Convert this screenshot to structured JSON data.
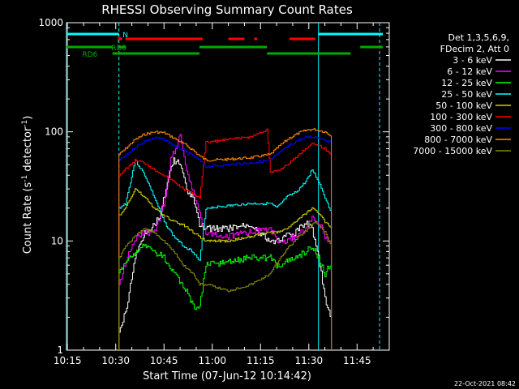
{
  "chart_data": {
    "type": "line",
    "title": "RHESSI Observing Summary Count Rates",
    "xlabel": "Start Time (07-Jun-12 10:14:42)",
    "ylabel": "Count Rate (s",
    "ylabel_sup": "-1",
    "ylabel_mid": " detector",
    "ylabel_sup2": "-1",
    "ylabel_end": ")",
    "y_scale": "log",
    "ylim": [
      1,
      1000
    ],
    "xlim": [
      "10:14:42",
      "11:55:00"
    ],
    "x_ticks": [
      "10:15",
      "10:30",
      "10:45",
      "11:00",
      "11:15",
      "11:30",
      "11:45"
    ],
    "y_ticks": [
      "1",
      "10",
      "100",
      "1000"
    ],
    "legend": {
      "placement": "right",
      "header": [
        "Det 1,3,5,6,9,",
        "FDecim 2, Att 0"
      ]
    },
    "series": [
      {
        "name": "3 - 6 keV",
        "color": "#ffffff",
        "x": [
          "10:31",
          "10:33",
          "10:36",
          "10:39",
          "10:42",
          "10:44",
          "10:46",
          "10:48",
          "10:50",
          "10:52",
          "10:54",
          "10:56",
          "10:58",
          "11:05",
          "11:12",
          "11:18",
          "11:20",
          "11:23",
          "11:26",
          "11:29",
          "11:31",
          "11:33",
          "11:35",
          "11:37"
        ],
        "y": [
          1.5,
          2.2,
          7,
          12,
          14,
          18,
          35,
          55,
          50,
          30,
          25,
          14,
          13,
          13,
          14,
          10,
          10,
          11,
          12,
          15,
          13,
          7,
          3,
          2
        ]
      },
      {
        "name": "6 - 12 keV",
        "color": "#ff00ff",
        "x": [
          "10:31",
          "10:34",
          "10:38",
          "10:42",
          "10:45",
          "10:47",
          "10:49",
          "10:50",
          "10:52",
          "10:54",
          "10:56",
          "10:58",
          "11:05",
          "11:12",
          "11:18",
          "11:20",
          "11:23",
          "11:26",
          "11:29",
          "11:31",
          "11:33",
          "11:35",
          "11:37"
        ],
        "y": [
          4,
          8,
          12,
          12,
          22,
          55,
          75,
          95,
          45,
          28,
          18,
          12,
          11,
          12,
          13,
          10,
          10,
          11,
          13,
          16,
          15,
          11,
          9
        ]
      },
      {
        "name": "12 - 25 keV",
        "color": "#00ff00",
        "x": [
          "10:31",
          "10:34",
          "10:38",
          "10:42",
          "10:45",
          "10:48",
          "10:52",
          "10:54",
          "10:56",
          "10:58",
          "11:05",
          "11:12",
          "11:18",
          "11:20",
          "11:23",
          "11:26",
          "11:29",
          "11:31",
          "11:33",
          "11:35",
          "11:37"
        ],
        "y": [
          5,
          7,
          9,
          8,
          7,
          5,
          3.5,
          2.5,
          2.5,
          6,
          6.5,
          7,
          7,
          6,
          6.5,
          7,
          8,
          9,
          7,
          5,
          6.5
        ]
      },
      {
        "name": "25 - 50 keV",
        "color": "#00ffff",
        "x": [
          "10:31",
          "10:33",
          "10:36",
          "10:39",
          "10:42",
          "10:45",
          "10:48",
          "10:51",
          "10:54",
          "10:56",
          "10:58",
          "11:05",
          "11:12",
          "11:18",
          "11:20",
          "11:23",
          "11:26",
          "11:29",
          "11:31",
          "11:33",
          "11:35",
          "11:37"
        ],
        "y": [
          20,
          22,
          55,
          40,
          25,
          15,
          11,
          9,
          8,
          6.5,
          20,
          21,
          22,
          22,
          20,
          25,
          28,
          35,
          45,
          35,
          25,
          18
        ]
      },
      {
        "name": "50 - 100 keV",
        "color": "#cccc00",
        "x": [
          "10:31",
          "10:33",
          "10:36",
          "10:39",
          "10:42",
          "10:45",
          "10:48",
          "10:51",
          "10:54",
          "10:56",
          "10:58",
          "11:05",
          "11:12",
          "11:18",
          "11:20",
          "11:23",
          "11:26",
          "11:29",
          "11:31",
          "11:33",
          "11:35",
          "11:37"
        ],
        "y": [
          17,
          20,
          30,
          25,
          20,
          17,
          15,
          14,
          12,
          11,
          10,
          10,
          11,
          12,
          12,
          13,
          15,
          18,
          20,
          18,
          15,
          13
        ]
      },
      {
        "name": "100 - 300 keV",
        "color": "#ff0000",
        "x": [
          "10:31",
          "10:33",
          "10:36",
          "10:39",
          "10:42",
          "10:45",
          "10:48",
          "10:51",
          "10:54",
          "10:56",
          "10:58",
          "11:05",
          "11:12",
          "11:17",
          "11:18",
          "11:21",
          "11:24",
          "11:27",
          "11:30",
          "11:32",
          "11:35",
          "11:37"
        ],
        "y": [
          40,
          45,
          55,
          52,
          45,
          40,
          35,
          30,
          27,
          25,
          80,
          85,
          90,
          105,
          42,
          45,
          52,
          62,
          75,
          78,
          70,
          60
        ]
      },
      {
        "name": "300 - 800 keV",
        "color": "#0000ff",
        "x": [
          "10:31",
          "10:33",
          "10:36",
          "10:39",
          "10:42",
          "10:45",
          "10:48",
          "10:51",
          "10:54",
          "10:56",
          "10:58",
          "11:05",
          "11:12",
          "11:18",
          "11:21",
          "11:24",
          "11:27",
          "11:30",
          "11:32",
          "11:35",
          "11:37"
        ],
        "y": [
          55,
          60,
          72,
          82,
          88,
          85,
          75,
          68,
          60,
          55,
          48,
          50,
          52,
          55,
          65,
          75,
          85,
          90,
          90,
          85,
          78
        ]
      },
      {
        "name": "800 - 7000 keV",
        "color": "#ff8800",
        "x": [
          "10:31",
          "10:33",
          "10:36",
          "10:39",
          "10:42",
          "10:45",
          "10:48",
          "10:51",
          "10:54",
          "10:56",
          "10:58",
          "11:05",
          "11:12",
          "11:18",
          "11:21",
          "11:24",
          "11:27",
          "11:30",
          "11:32",
          "11:35",
          "11:37"
        ],
        "y": [
          62,
          70,
          85,
          95,
          100,
          98,
          88,
          78,
          68,
          60,
          55,
          56,
          58,
          62,
          75,
          88,
          98,
          105,
          105,
          100,
          92
        ]
      },
      {
        "name": "7000 - 15000 keV",
        "color": "#888800",
        "x": [
          "10:31",
          "10:33",
          "10:36",
          "10:39",
          "10:42",
          "10:45",
          "10:48",
          "10:51",
          "10:54",
          "10:56",
          "10:58",
          "11:05",
          "11:12",
          "11:18",
          "11:21",
          "11:24",
          "11:27",
          "11:30",
          "11:32",
          "11:35",
          "11:37"
        ],
        "y": [
          7,
          9,
          11,
          13,
          12,
          10,
          8,
          6,
          5,
          4,
          4,
          3.5,
          4,
          5,
          7,
          9,
          11,
          13,
          15,
          12,
          9
        ]
      }
    ],
    "flags": [
      {
        "label": "N",
        "color": "#00ffff",
        "segments": [
          [
            "10:14:42",
            "10:31"
          ],
          [
            "11:33",
            "11:53"
          ]
        ],
        "label_at": "10:33"
      },
      {
        "label": "F",
        "color": "#ff0000",
        "segments": [
          [
            "10:31",
            "10:32"
          ],
          [
            "10:33",
            "10:57"
          ],
          [
            "11:05",
            "11:10"
          ],
          [
            "11:13",
            "11:14"
          ],
          [
            "11:24",
            "11:32"
          ]
        ],
        "label_at": "10:31"
      },
      {
        "label": "RD0",
        "color": "#00aa00",
        "segments": [
          [
            "10:14:42",
            "10:29"
          ],
          [
            "10:31",
            "10:33"
          ],
          [
            "10:56",
            "11:17"
          ],
          [
            "11:46",
            "11:53"
          ]
        ],
        "label_at": "10:31"
      },
      {
        "label": "RD6",
        "color": "#00aa00",
        "segments": [
          [
            "10:29",
            "10:56"
          ],
          [
            "11:17",
            "11:43"
          ]
        ],
        "label_at": "10:22"
      }
    ],
    "vlines": [
      {
        "x": "10:15",
        "color": "#00ffff",
        "style": "solid"
      },
      {
        "x": "10:31",
        "color": "#00ffff",
        "style": "dashed"
      },
      {
        "x": "11:33",
        "color": "#00ffff",
        "style": "solid"
      },
      {
        "x": "11:52",
        "color": "#00ffff",
        "style": "dashed"
      }
    ],
    "timestamp": "22-Oct-2021 08:42"
  }
}
